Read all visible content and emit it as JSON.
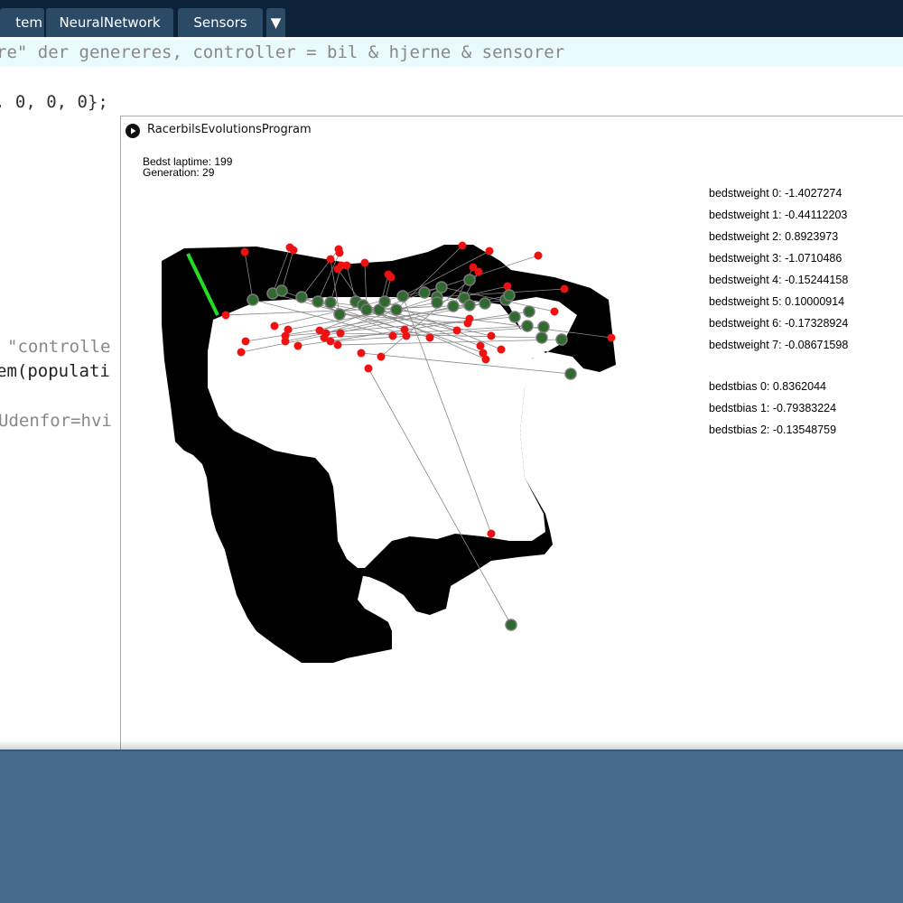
{
  "tabs": [
    {
      "label": "tem"
    },
    {
      "label": "NeuralNetwork"
    },
    {
      "label": "Sensors"
    },
    {
      "label": "▼"
    }
  ],
  "editor": {
    "lines": [
      "re\" der genereres, controller = bil & hjerne & sensorer",
      ", 0, 0, 0};",
      "\"controlle",
      "em(populati",
      "Udenfor=hvi"
    ]
  },
  "sketch": {
    "title": "RacerbilsEvolutionsProgram",
    "stats": {
      "best_laptime": "Bedst laptime: 199",
      "generation": "Generation: 29"
    },
    "weights": [
      "bedstweight 0: -1.4027274",
      "bedstweight 1: -0.44112203",
      "bedstweight 2: 0.8923973",
      "bedstweight 3: -1.0710486",
      "bedstweight 4: -0.15244158",
      "bedstweight 5: 0.10000914",
      "bedstweight 6: -0.17328924",
      "bedstweight 7: -0.08671598"
    ],
    "biases": [
      "bedstbias 0: 0.8362044",
      "bedstbias 1: -0.79383224",
      "bedstbias 2: -0.13548759"
    ]
  },
  "colors": {
    "track": "#000000",
    "finish_line": "#22dd22",
    "car_fill": "#2f6b2f",
    "car_stroke": "#7a7a7a",
    "sensor_dot": "#ee1111",
    "sensor_line": "#888888",
    "desktop": "#476a8c",
    "ide_bar": "#0b2238"
  },
  "icons": {
    "sketch_icon": "play-icon",
    "tab_menu": "dropdown-arrow-icon"
  }
}
